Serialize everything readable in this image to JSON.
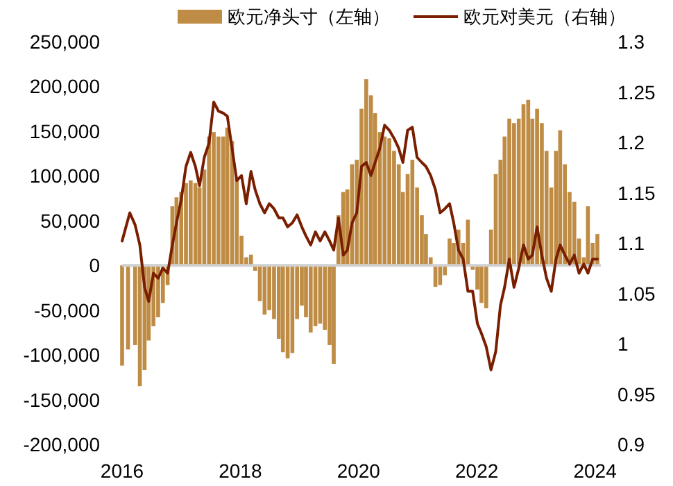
{
  "chart_data": {
    "type": "bar",
    "legend": "top",
    "xlim": [
      2016,
      2024.1
    ],
    "xticks": [
      2016,
      2018,
      2020,
      2022,
      2024
    ],
    "ylim": [
      -200000,
      250000
    ],
    "yticks": [
      {
        "value": -200000,
        "label": "-200,000"
      },
      {
        "value": -150000,
        "label": "-150,000"
      },
      {
        "value": -100000,
        "label": "-100,000"
      },
      {
        "value": -50000,
        "label": "-50,000"
      },
      0,
      {
        "value": 50000,
        "label": "50,000"
      },
      {
        "value": 100000,
        "label": "100,000"
      },
      {
        "value": 150000,
        "label": "150,000"
      },
      {
        "value": 200000,
        "label": "200,000"
      },
      {
        "value": 250000,
        "label": "250,000"
      }
    ],
    "y2lim": [
      0.9,
      1.3
    ],
    "y2ticks": [
      0.9,
      0.95,
      1,
      1.05,
      1.1,
      1.15,
      1.2,
      1.25,
      1.3
    ],
    "series": [
      {
        "name": "欧元净头寸（左轴）",
        "color": "#bf8c45",
        "x": [
          2016.0,
          2016.1,
          2016.22,
          2016.3,
          2016.38,
          2016.45,
          2016.53,
          2016.61,
          2016.69,
          2016.77,
          2016.85,
          2016.92,
          2017.0,
          2017.08,
          2017.16,
          2017.24,
          2017.31,
          2017.39,
          2017.47,
          2017.55,
          2017.63,
          2017.71,
          2017.78,
          2017.86,
          2017.94,
          2018.02,
          2018.1,
          2018.18,
          2018.25,
          2018.33,
          2018.41,
          2018.49,
          2018.57,
          2018.65,
          2018.72,
          2018.8,
          2018.88,
          2018.96,
          2019.04,
          2019.11,
          2019.19,
          2019.27,
          2019.35,
          2019.43,
          2019.51,
          2019.58,
          2019.66,
          2019.74,
          2019.81,
          2019.89,
          2019.97,
          2020.05,
          2020.13,
          2020.21,
          2020.28,
          2020.36,
          2020.44,
          2020.52,
          2020.6,
          2020.68,
          2020.75,
          2020.83,
          2020.91,
          2020.99,
          2021.07,
          2021.14,
          2021.22,
          2021.3,
          2021.38,
          2021.46,
          2021.54,
          2021.61,
          2021.69,
          2021.77,
          2021.85,
          2021.93,
          2022.01,
          2022.08,
          2022.16,
          2022.24,
          2022.32,
          2022.4,
          2022.47,
          2022.55,
          2022.63,
          2022.71,
          2022.79,
          2022.87,
          2022.94,
          2023.02,
          2023.1,
          2023.18,
          2023.26,
          2023.34,
          2023.41,
          2023.49,
          2023.57,
          2023.65,
          2023.73,
          2023.81,
          2023.88,
          2023.96,
          2024.04
        ],
        "values": [
          -112000,
          -94000,
          -89000,
          -135000,
          -117000,
          -84000,
          -68000,
          -58000,
          -42000,
          -22000,
          66000,
          76000,
          82000,
          92000,
          95000,
          92000,
          87000,
          107000,
          144000,
          149000,
          144000,
          144000,
          154000,
          139000,
          97000,
          33000,
          9000,
          12000,
          -6000,
          -40000,
          -55000,
          -50000,
          -60000,
          -82000,
          -97000,
          -104000,
          -98000,
          -60000,
          -45000,
          -58000,
          -75000,
          -68000,
          -65000,
          -72000,
          -89000,
          -110000,
          56000,
          82000,
          85000,
          113000,
          118000,
          175000,
          208000,
          190000,
          170000,
          149000,
          144000,
          142000,
          128000,
          113000,
          82000,
          102000,
          118000,
          87000,
          56000,
          35000,
          9000,
          -24000,
          -22000,
          -11000,
          30000,
          25000,
          40000,
          25000,
          51000,
          -5000,
          -27000,
          -42000,
          -48000,
          40000,
          102000,
          118000,
          144000,
          164000,
          159000,
          164000,
          180000,
          185000,
          164000,
          175000,
          159000,
          128000,
          87000,
          128000,
          151000,
          113000,
          82000,
          71000,
          30000,
          9000,
          66000,
          25000,
          35000
        ]
      },
      {
        "name": "欧元对美元（右轴）",
        "type": "line",
        "axis": "y2",
        "color": "#7a1e00",
        "x": [
          2016.0,
          2016.13,
          2016.22,
          2016.3,
          2016.38,
          2016.45,
          2016.53,
          2016.61,
          2016.69,
          2016.77,
          2016.85,
          2016.92,
          2017.0,
          2017.08,
          2017.16,
          2017.24,
          2017.31,
          2017.39,
          2017.47,
          2017.55,
          2017.63,
          2017.71,
          2017.78,
          2017.86,
          2017.94,
          2018.02,
          2018.1,
          2018.18,
          2018.25,
          2018.33,
          2018.41,
          2018.49,
          2018.57,
          2018.65,
          2018.72,
          2018.8,
          2018.88,
          2018.96,
          2019.04,
          2019.11,
          2019.19,
          2019.27,
          2019.35,
          2019.43,
          2019.51,
          2019.58,
          2019.66,
          2019.74,
          2019.81,
          2019.89,
          2019.97,
          2020.05,
          2020.13,
          2020.21,
          2020.28,
          2020.36,
          2020.44,
          2020.52,
          2020.6,
          2020.68,
          2020.75,
          2020.83,
          2020.91,
          2020.99,
          2021.07,
          2021.14,
          2021.22,
          2021.3,
          2021.38,
          2021.46,
          2021.54,
          2021.61,
          2021.69,
          2021.77,
          2021.85,
          2021.93,
          2022.01,
          2022.08,
          2022.16,
          2022.24,
          2022.32,
          2022.4,
          2022.47,
          2022.55,
          2022.63,
          2022.71,
          2022.79,
          2022.87,
          2022.94,
          2023.02,
          2023.1,
          2023.18,
          2023.26,
          2023.34,
          2023.41,
          2023.49,
          2023.57,
          2023.65,
          2023.73,
          2023.81,
          2023.88,
          2023.96,
          2024.04
        ],
        "values": [
          1.102,
          1.13,
          1.118,
          1.098,
          1.056,
          1.042,
          1.07,
          1.065,
          1.075,
          1.07,
          1.098,
          1.12,
          1.143,
          1.176,
          1.19,
          1.176,
          1.157,
          1.185,
          1.199,
          1.24,
          1.231,
          1.229,
          1.226,
          1.194,
          1.162,
          1.167,
          1.139,
          1.171,
          1.153,
          1.139,
          1.13,
          1.139,
          1.134,
          1.125,
          1.125,
          1.116,
          1.12,
          1.128,
          1.116,
          1.107,
          1.098,
          1.111,
          1.102,
          1.111,
          1.102,
          1.093,
          1.125,
          1.088,
          1.093,
          1.12,
          1.13,
          1.176,
          1.18,
          1.167,
          1.18,
          1.194,
          1.217,
          1.212,
          1.204,
          1.194,
          1.18,
          1.212,
          1.215,
          1.185,
          1.18,
          1.176,
          1.167,
          1.153,
          1.13,
          1.134,
          1.139,
          1.12,
          1.093,
          1.084,
          1.052,
          1.052,
          1.02,
          1.01,
          0.997,
          0.974,
          0.992,
          1.038,
          1.056,
          1.084,
          1.056,
          1.075,
          1.098,
          1.084,
          1.088,
          1.116,
          1.088,
          1.065,
          1.052,
          1.084,
          1.098,
          1.088,
          1.079,
          1.088,
          1.07,
          1.079,
          1.07,
          1.084,
          1.084
        ]
      }
    ]
  }
}
